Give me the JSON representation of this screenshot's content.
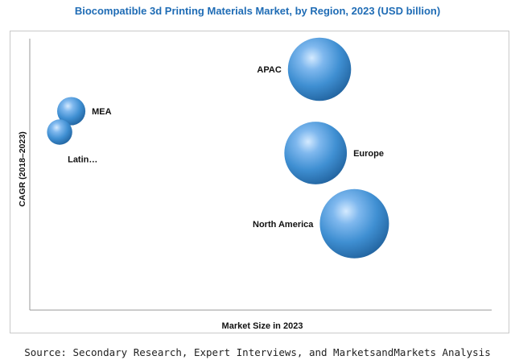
{
  "title": "Biocompatible 3d Printing Materials Market, by Region, 2023 (USD billion)",
  "source": "Source: Secondary Research, Expert Interviews, and MarketsandMarkets Analysis",
  "chart_data": {
    "type": "bubble",
    "title": "Biocompatible 3d Printing Materials Market, by Region, 2023 (USD billion)",
    "xlabel": "Market Size in 2023",
    "ylabel": "CAGR (2018–2023)",
    "xlim": [
      0,
      100
    ],
    "ylim": [
      0,
      100
    ],
    "grid": false,
    "axis_ticks_labeled": false,
    "bubble_color": "#3f8fd2",
    "series": [
      {
        "label": "MEA",
        "x": 8,
        "y": 76,
        "size": 2.0,
        "label_side": "right"
      },
      {
        "label": "Latin…",
        "x": 5,
        "y": 68,
        "size": 1.6,
        "label_side": "below-right"
      },
      {
        "label": "APAC",
        "x": 72,
        "y": 92,
        "size": 10.0,
        "label_side": "left"
      },
      {
        "label": "Europe",
        "x": 71,
        "y": 60,
        "size": 9.8,
        "label_side": "right"
      },
      {
        "label": "North America",
        "x": 81,
        "y": 33,
        "size": 12.0,
        "label_side": "left"
      }
    ]
  }
}
